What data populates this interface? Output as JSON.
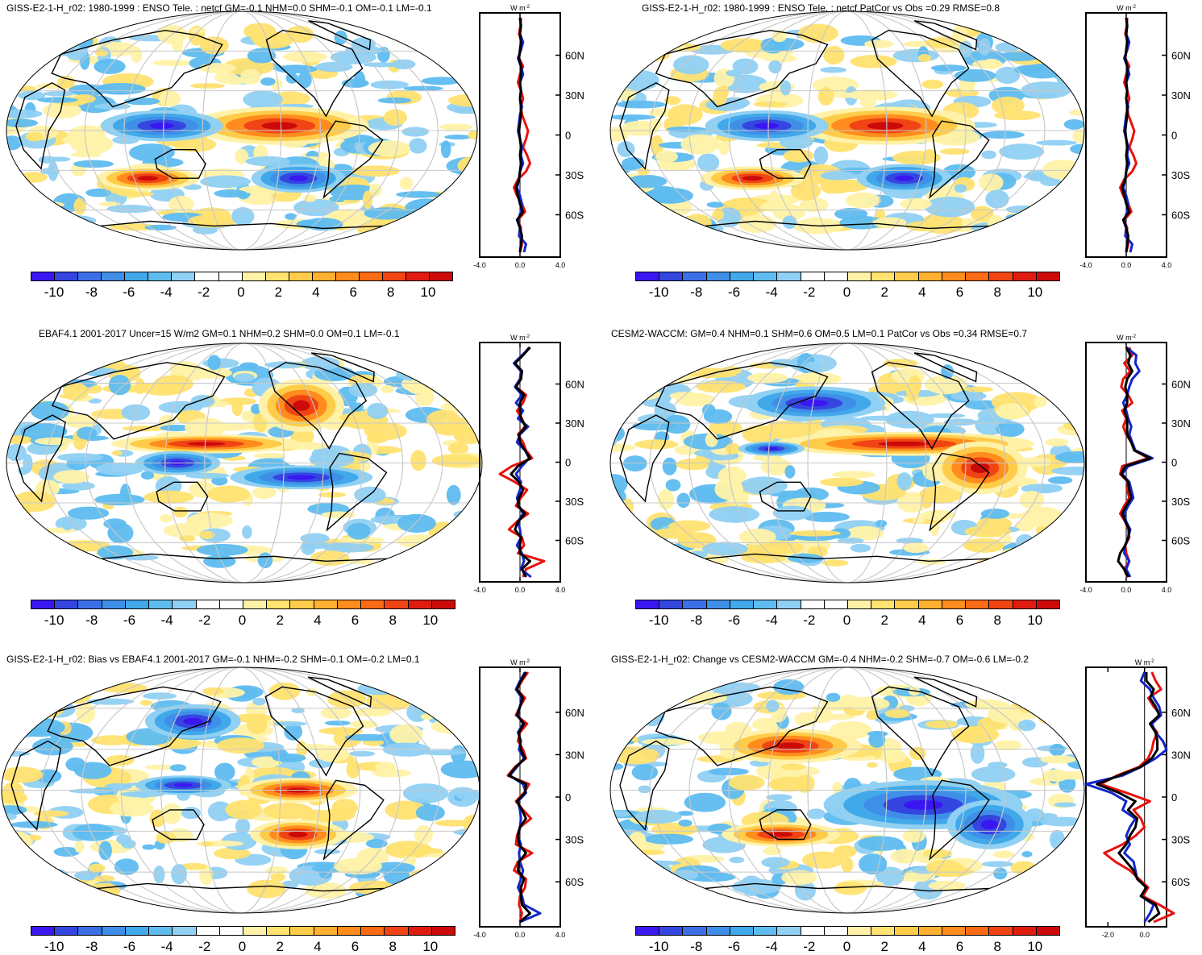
{
  "colors": {
    "scale": [
      "#3a17f0",
      "#3546e0",
      "#3b6fe6",
      "#3f8fe8",
      "#41a8ea",
      "#5ebcef",
      "#8fd0f3",
      "#ffffff",
      "#ffffff",
      "#fff2a8",
      "#ffe270",
      "#ffcc4a",
      "#ffb030",
      "#ff8c1c",
      "#fb6a14",
      "#f04414",
      "#e01c10",
      "#cc0a0a"
    ],
    "red": "#e8120e",
    "blue": "#1326cc",
    "black": "#000000",
    "grid": "#c8c8c8"
  },
  "colorbar": {
    "labels": [
      "-10",
      "-8",
      "-6",
      "-4",
      "-2",
      "0",
      "2",
      "4",
      "6",
      "8",
      "10"
    ]
  },
  "profile_axis": {
    "unit": "W m",
    "unit_exp": "-2",
    "lat_labels": [
      "60N",
      "30N",
      "0",
      "30S",
      "60S"
    ]
  },
  "panels": [
    {
      "title": "GISS-E2-1-H_r02: 1980-1999 : ENSO Tele. : netcf GM=-0.1 NHM=0.0 SHM=-0.1 OM=-0.1 LM=-0.1",
      "x_ticks": [
        "-4.0",
        "0.0",
        "4.0"
      ],
      "lines": {
        "red": [
          0.1,
          0.05,
          -0.1,
          0.2,
          0.0,
          -0.1,
          0.3,
          0.0,
          -0.2,
          0.1,
          0.3,
          0.1,
          0.2,
          0.5,
          0.8,
          0.6,
          0.3,
          0.7,
          1.0,
          0.6,
          -0.2,
          -0.6,
          -0.3,
          0.2,
          0.5,
          -0.2,
          0.1,
          0.0,
          0.2,
          0.0
        ],
        "blue": [
          0.0,
          0.1,
          0.0,
          0.3,
          0.1,
          -0.2,
          0.1,
          0.3,
          0.0,
          0.1,
          0.0,
          0.2,
          0.0,
          -0.1,
          -0.2,
          0.0,
          0.2,
          0.1,
          0.3,
          0.0,
          -0.1,
          -0.3,
          0.0,
          0.2,
          0.1,
          -0.2,
          0.0,
          -0.1,
          0.6,
          0.4
        ],
        "black": [
          0.0,
          0.1,
          0.0,
          0.1,
          0.0,
          -0.1,
          0.1,
          0.1,
          0.0,
          0.1,
          0.0,
          0.1,
          0.1,
          0.0,
          -0.1,
          0.0,
          0.1,
          0.0,
          0.1,
          0.0,
          -0.1,
          -0.4,
          -0.2,
          0.0,
          0.3,
          -0.3,
          0.0,
          0.2,
          0.1,
          0.0
        ]
      },
      "hot": [
        [
          0.58,
          0.48,
          0.38,
          0.16
        ],
        [
          0.33,
          0.48,
          0.26,
          0.13
        ],
        [
          0.3,
          0.7,
          0.22,
          0.1
        ],
        [
          0.62,
          0.7,
          0.2,
          0.12
        ]
      ],
      "hot_sign": [
        1,
        -1,
        1,
        -1
      ]
    },
    {
      "title": "GISS-E2-1-H_r02: 1980-1999 : ENSO Tele. : netcf PatCor vs Obs =0.29 RMSE=0.8",
      "x_ticks": [
        "-4.0",
        "0.0",
        "4.0"
      ],
      "lines": {
        "red": [
          0.1,
          0.05,
          -0.1,
          0.2,
          0.0,
          -0.1,
          0.3,
          0.0,
          -0.2,
          0.1,
          0.3,
          0.1,
          0.2,
          0.5,
          0.8,
          0.6,
          0.3,
          0.7,
          1.0,
          0.6,
          -0.2,
          -0.6,
          -0.3,
          0.2,
          0.5,
          -0.2,
          0.1,
          0.0,
          0.2,
          0.0
        ],
        "blue": [
          0.0,
          0.1,
          0.0,
          0.3,
          0.1,
          -0.2,
          0.1,
          0.3,
          0.0,
          0.1,
          0.0,
          0.2,
          0.0,
          -0.1,
          -0.2,
          0.0,
          0.2,
          0.1,
          0.3,
          0.0,
          -0.1,
          -0.3,
          0.0,
          0.2,
          0.1,
          -0.2,
          0.0,
          -0.1,
          0.6,
          0.4
        ],
        "black": [
          0.0,
          0.1,
          0.0,
          0.1,
          0.0,
          -0.1,
          0.1,
          0.1,
          0.0,
          0.1,
          0.0,
          0.1,
          0.1,
          0.0,
          -0.1,
          0.0,
          0.1,
          0.0,
          0.1,
          0.0,
          -0.1,
          -0.4,
          -0.2,
          0.0,
          0.3,
          -0.3,
          0.0,
          0.2,
          0.1,
          0.0
        ]
      },
      "hot": [
        [
          0.58,
          0.48,
          0.38,
          0.16
        ],
        [
          0.33,
          0.48,
          0.26,
          0.13
        ],
        [
          0.3,
          0.7,
          0.22,
          0.1
        ],
        [
          0.62,
          0.7,
          0.2,
          0.12
        ]
      ],
      "hot_sign": [
        1,
        -1,
        1,
        -1
      ]
    },
    {
      "title": "EBAF4.1 2001-2017 Uncer=15 W/m2 GM=0.1 NHM=0.2 SHM=0.0 OM=0.1 LM=-0.1",
      "x_ticks": [
        "-4.0",
        "0.0",
        "4.0"
      ],
      "lines": {
        "red": [
          0.9,
          0.3,
          -0.5,
          0.2,
          0.1,
          -0.4,
          0.6,
          0.3,
          -0.3,
          0.2,
          0.5,
          -0.2,
          0.3,
          0.6,
          1.2,
          -0.8,
          -2.0,
          -0.5,
          0.7,
          0.1,
          -0.4,
          0.8,
          -0.3,
          -1.1,
          0.2,
          0.4,
          -0.2,
          2.4,
          0.6,
          0.3
        ],
        "blue": [
          1.0,
          0.2,
          -0.6,
          0.1,
          0.0,
          -0.5,
          0.2,
          -0.4,
          0.3,
          -0.2,
          0.8,
          0.0,
          -0.3,
          0.5,
          0.9,
          0.2,
          -0.4,
          0.1,
          0.0,
          -0.3,
          -0.1,
          0.3,
          -0.2,
          0.0,
          0.1,
          -0.3,
          0.2,
          0.4,
          0.1,
          1.1
        ],
        "black": [
          1.0,
          0.3,
          -0.5,
          0.2,
          0.1,
          -0.4,
          0.4,
          0.0,
          0.0,
          0.1,
          0.6,
          -0.1,
          0.0,
          0.5,
          1.0,
          -0.2,
          -0.9,
          -0.1,
          0.3,
          -0.1,
          -0.2,
          0.5,
          -0.2,
          -0.5,
          0.1,
          0.0,
          0.0,
          1.0,
          0.2,
          0.6
        ]
      },
      "hot": [
        [
          0.62,
          0.26,
          0.18,
          0.22
        ],
        [
          0.42,
          0.42,
          0.4,
          0.08
        ],
        [
          0.62,
          0.56,
          0.3,
          0.1
        ],
        [
          0.36,
          0.5,
          0.18,
          0.1
        ]
      ],
      "hot_sign": [
        1,
        1,
        -1,
        -1
      ]
    },
    {
      "title": "CESM2-WACCM: GM=0.4 NHM=0.1 SHM=0.6 OM=0.5 LM=0.1 PatCor vs Obs =0.34 RMSE=0.7",
      "x_ticks": [
        "-4.0",
        "0.0",
        "4.0"
      ],
      "lines": {
        "red": [
          0.3,
          0.6,
          -0.2,
          0.4,
          -0.3,
          -0.5,
          0.2,
          0.6,
          -0.4,
          0.0,
          -0.3,
          0.0,
          0.5,
          0.8,
          2.2,
          -0.4,
          -0.6,
          0.2,
          0.1,
          0.3,
          -0.2,
          -0.6,
          -0.1,
          0.2,
          0.3,
          -0.1,
          0.0,
          0.3,
          -0.2,
          0.1
        ],
        "blue": [
          0.0,
          1.0,
          0.9,
          1.3,
          0.6,
          0.3,
          0.1,
          -0.3,
          0.0,
          0.2,
          0.5,
          0.3,
          0.6,
          0.9,
          2.6,
          0.2,
          -0.4,
          0.3,
          0.5,
          0.7,
          0.2,
          -0.2,
          0.0,
          0.4,
          0.2,
          -0.1,
          -0.2,
          0.3,
          0.0,
          0.4
        ],
        "black": [
          0.0,
          0.4,
          0.2,
          0.6,
          0.1,
          -0.1,
          0.1,
          0.1,
          -0.2,
          0.1,
          0.1,
          0.1,
          0.5,
          0.8,
          2.4,
          -0.1,
          -0.5,
          0.2,
          0.3,
          0.5,
          0.0,
          -0.4,
          -0.1,
          0.3,
          0.2,
          -0.1,
          -0.6,
          -0.8,
          -0.2,
          0.2
        ]
      },
      "hot": [
        [
          0.62,
          0.42,
          0.55,
          0.1
        ],
        [
          0.78,
          0.52,
          0.2,
          0.22
        ],
        [
          0.43,
          0.25,
          0.3,
          0.14
        ],
        [
          0.34,
          0.44,
          0.14,
          0.06
        ]
      ],
      "hot_sign": [
        1,
        1,
        -1,
        -1
      ]
    },
    {
      "title": "GISS-E2-1-H_r02: Bias vs EBAF4.1 2001-2017 GM=-0.1 NHM=-0.2 SHM=-0.1 OM=-0.2 LM=0.1",
      "x_ticks": [
        "-4.0",
        "0.0",
        "4.0"
      ],
      "lines": {
        "red": [
          0.8,
          0.2,
          -0.3,
          0.5,
          0.0,
          -0.4,
          0.7,
          0.0,
          -0.2,
          0.3,
          0.6,
          -0.5,
          -1.2,
          0.9,
          0.4,
          -0.4,
          0.3,
          1.1,
          0.0,
          -0.3,
          -0.4,
          1.2,
          -0.2,
          -0.6,
          0.6,
          0.5,
          0.0,
          -0.1,
          0.2,
          0.0
        ],
        "blue": [
          0.5,
          0.0,
          -0.4,
          0.2,
          0.0,
          -0.2,
          0.3,
          -0.2,
          0.1,
          -0.1,
          0.4,
          -0.3,
          -1.0,
          0.3,
          0.6,
          -0.2,
          0.0,
          0.1,
          0.0,
          -0.2,
          0.1,
          -0.1,
          0.0,
          0.3,
          0.1,
          -0.2,
          0.2,
          0.4,
          2.0,
          0.0
        ],
        "black": [
          0.6,
          0.1,
          -0.3,
          0.3,
          0.0,
          -0.3,
          0.4,
          -0.1,
          0.0,
          0.1,
          0.5,
          -0.4,
          -1.1,
          0.6,
          0.5,
          -0.3,
          0.2,
          0.6,
          0.0,
          -0.2,
          -0.1,
          0.6,
          -0.1,
          -0.2,
          0.4,
          0.1,
          0.1,
          0.2,
          1.0,
          0.0
        ]
      },
      "hot": [
        [
          0.62,
          0.5,
          0.25,
          0.1
        ],
        [
          0.38,
          0.48,
          0.2,
          0.08
        ],
        [
          0.62,
          0.68,
          0.2,
          0.12
        ],
        [
          0.4,
          0.22,
          0.2,
          0.14
        ]
      ],
      "hot_sign": [
        1,
        -1,
        1,
        -1
      ]
    },
    {
      "title": "GISS-E2-1-H_r02: Change vs CESM2-WACCM GM=-0.4 NHM=-0.2 SHM=-0.7 OM=-0.6 LM=-0.2",
      "x_ticks": [
        "-2.0",
        "0.0"
      ],
      "lines": {
        "red": [
          0.4,
          0.6,
          0.9,
          0.2,
          0.5,
          0.9,
          0.3,
          0.7,
          0.5,
          0.4,
          0.2,
          -0.3,
          -1.5,
          -2.4,
          -1.0,
          0.3,
          -0.6,
          -0.2,
          0.0,
          -0.5,
          -1.2,
          -2.2,
          -1.6,
          -0.8,
          -0.3,
          0.2,
          -0.1,
          0.8,
          1.6,
          0.5
        ],
        "blue": [
          0.0,
          -0.2,
          0.3,
          0.5,
          0.8,
          0.9,
          0.4,
          0.6,
          1.0,
          1.2,
          0.6,
          -0.2,
          -1.2,
          -3.2,
          -1.8,
          -1.0,
          -1.2,
          -0.5,
          -0.8,
          -1.0,
          -0.8,
          -1.1,
          -0.6,
          -0.5,
          -0.4,
          0.1,
          -0.2,
          0.5,
          0.3,
          0.0
        ],
        "black": [
          0.1,
          0.1,
          0.5,
          0.3,
          0.6,
          0.8,
          0.3,
          0.6,
          0.7,
          0.7,
          0.4,
          -0.2,
          -1.4,
          -2.6,
          -1.4,
          -0.5,
          -0.9,
          -0.4,
          -0.5,
          -0.8,
          -1.0,
          -1.4,
          -1.0,
          -0.6,
          -0.4,
          0.1,
          -0.2,
          0.6,
          0.8,
          0.2
        ]
      },
      "hot": [
        [
          0.66,
          0.56,
          0.42,
          0.2
        ],
        [
          0.38,
          0.32,
          0.3,
          0.14
        ],
        [
          0.36,
          0.68,
          0.25,
          0.1
        ],
        [
          0.8,
          0.64,
          0.18,
          0.2
        ]
      ],
      "hot_sign": [
        -1,
        1,
        1,
        -1
      ]
    }
  ]
}
